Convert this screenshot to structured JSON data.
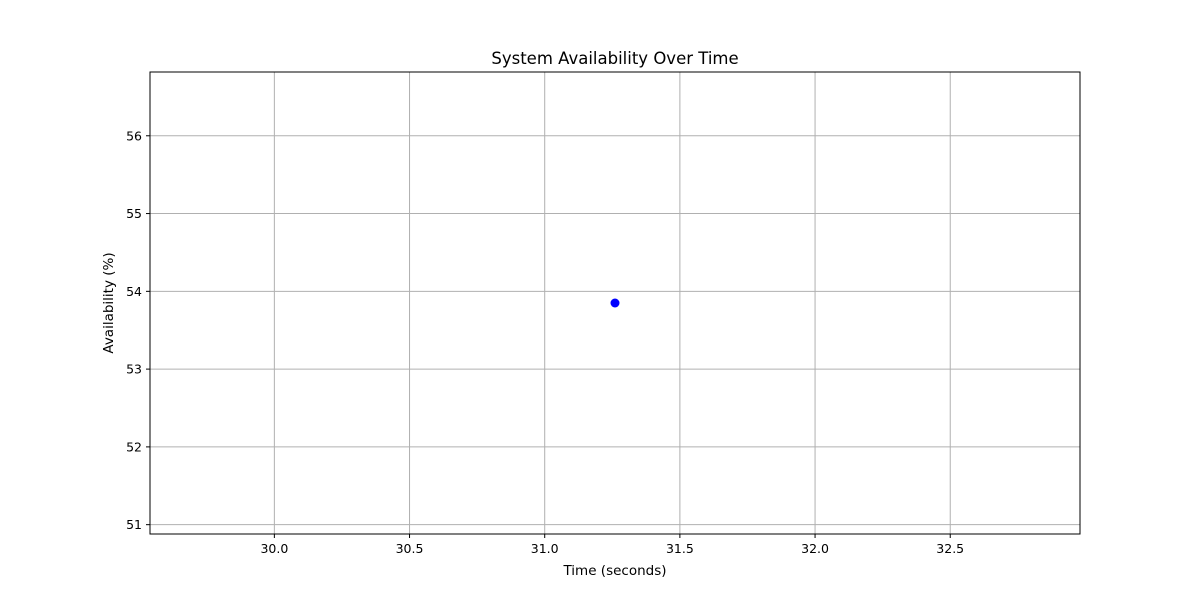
{
  "chart_data": {
    "type": "scatter",
    "title": "System Availability Over Time",
    "xlabel": "Time (seconds)",
    "ylabel": "Availability (%)",
    "xlim": [
      29.54,
      32.98
    ],
    "ylim": [
      50.88,
      56.82
    ],
    "xticks": [
      30.0,
      30.5,
      31.0,
      31.5,
      32.0,
      32.5
    ],
    "xtick_labels": [
      "30.0",
      "30.5",
      "31.0",
      "31.5",
      "32.0",
      "32.5"
    ],
    "yticks": [
      51,
      52,
      53,
      54,
      55,
      56
    ],
    "ytick_labels": [
      "51",
      "52",
      "53",
      "54",
      "55",
      "56"
    ],
    "grid": true,
    "series": [
      {
        "color": "#0000ff",
        "points": [
          {
            "x": 31.26,
            "y": 53.85
          }
        ]
      }
    ]
  }
}
